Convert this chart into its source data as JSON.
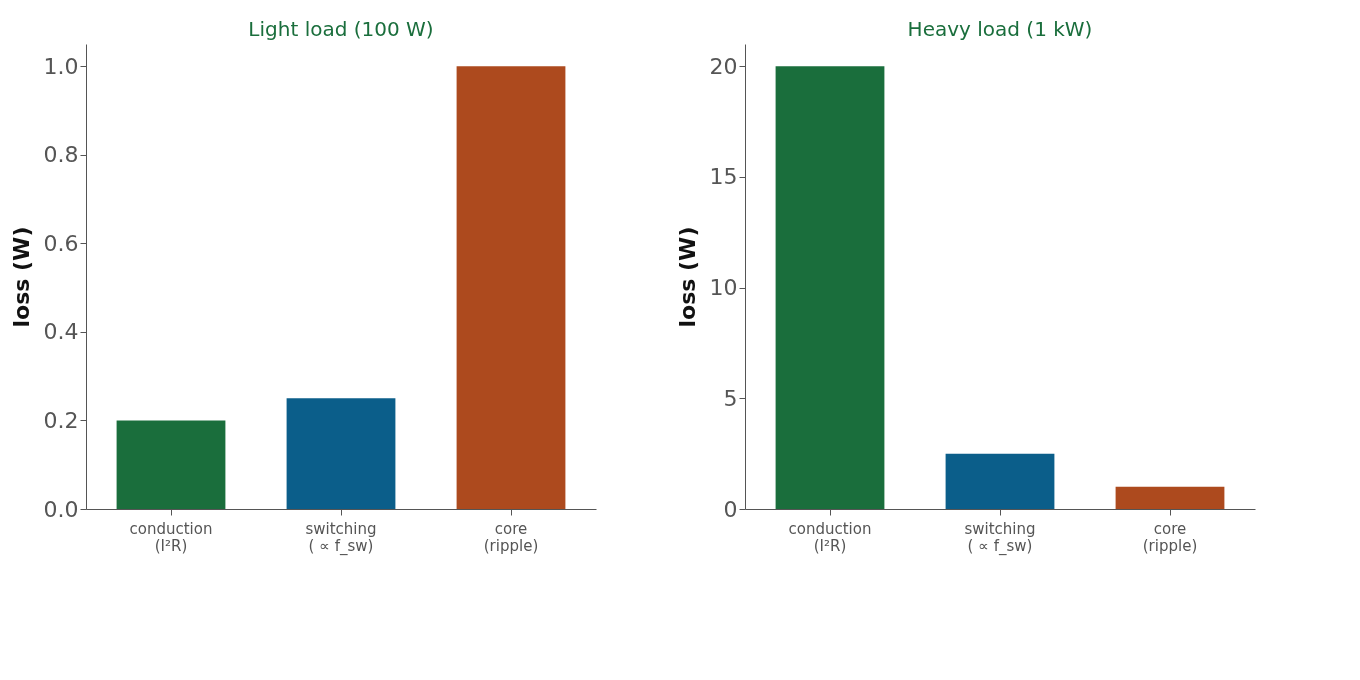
{
  "chart_data": [
    {
      "type": "bar",
      "title": "Light load (100 W)",
      "ylabel": "loss (W)",
      "categories": [
        "conduction\n(I²R)",
        "switching\n( ∝ f_sw)",
        "core\n(ripple)"
      ],
      "values": [
        0.2,
        0.25,
        1.0
      ],
      "colors": [
        "#1a6e3c",
        "#0b5e8a",
        "#ad4a1e"
      ],
      "ylim": [
        0,
        1.05
      ],
      "yticks": [
        {
          "value": 0,
          "label": "0.0"
        },
        0.2,
        0.4,
        0.6,
        0.8,
        {
          "value": 1,
          "label": "1.0"
        }
      ],
      "grid": false
    },
    {
      "type": "bar",
      "title": "Heavy load (1 kW)",
      "ylabel": "loss (W)",
      "categories": [
        "conduction\n(I²R)",
        "switching\n( ∝ f_sw)",
        "core\n(ripple)"
      ],
      "values": [
        20,
        2.5,
        1.0
      ],
      "colors": [
        "#1a6e3c",
        "#0b5e8a",
        "#ad4a1e"
      ],
      "ylim": [
        0,
        21
      ],
      "yticks": [
        0,
        5,
        10,
        15,
        20
      ],
      "grid": false
    }
  ]
}
